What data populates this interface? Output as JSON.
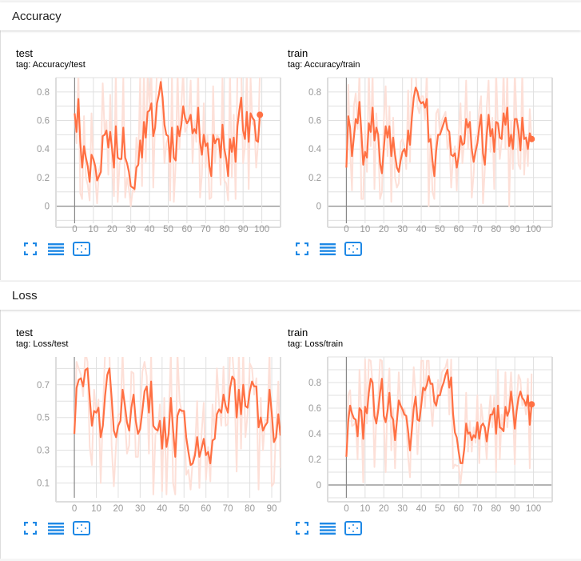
{
  "sections": [
    {
      "title": "Accuracy"
    },
    {
      "title": "Loss"
    }
  ],
  "colors": {
    "smoothed": "#ff7043",
    "raw": "#fde0d8",
    "icon": "#1e88e5",
    "grid": "#e0e0e0",
    "axis": "#999999"
  },
  "icons": [
    "fullscreen-icon",
    "list-icon",
    "fit-domain-icon"
  ],
  "chart_data": [
    {
      "type": "line",
      "title": "test",
      "tag": "tag: Accuracy/test",
      "xlim": [
        -10,
        110
      ],
      "ylim": [
        -0.12,
        0.9
      ],
      "xticks": [
        0,
        10,
        20,
        30,
        40,
        50,
        60,
        70,
        80,
        90,
        100
      ],
      "yticks": [
        0,
        0.2,
        0.4,
        0.6,
        0.8
      ],
      "ygrid_step": 0.1,
      "grid": true,
      "last_point_marker": true,
      "series": [
        {
          "role": "smoothed",
          "values": [
            0.65,
            0.52,
            0.75,
            0.45,
            0.27,
            0.42,
            0.34,
            0.28,
            0.17,
            0.36,
            0.33,
            0.28,
            0.18,
            0.21,
            0.24,
            0.49,
            0.5,
            0.53,
            0.41,
            0.52,
            0.4,
            0.27,
            0.56,
            0.34,
            0.33,
            0.33,
            0.55,
            0.34,
            0.3,
            0.24,
            0.14,
            0.13,
            0.12,
            0.27,
            0.29,
            0.46,
            0.34,
            0.59,
            0.48,
            0.66,
            0.67,
            0.72,
            0.49,
            0.55,
            0.72,
            0.78,
            0.87,
            0.76,
            0.57,
            0.5,
            0.49,
            0.31,
            0.55,
            0.34,
            0.32,
            0.56,
            0.49,
            0.57,
            0.7,
            0.62,
            0.58,
            0.6,
            0.64,
            0.51,
            0.54,
            0.51,
            0.69,
            0.45,
            0.36,
            0.5,
            0.42,
            0.44,
            0.28,
            0.21,
            0.5,
            0.44,
            0.47,
            0.47,
            0.34,
            0.57,
            0.4,
            0.33,
            0.21,
            0.47,
            0.38,
            0.48,
            0.31,
            0.56,
            0.67,
            0.76,
            0.53,
            0.47,
            0.66,
            0.45,
            0.65,
            0.62,
            0.6,
            0.46,
            0.45,
            0.64
          ]
        },
        {
          "role": "raw",
          "values": [
            0.65,
            0.44,
            0.95,
            0.09,
            0.05,
            0.63,
            0.2,
            0.15,
            0.04,
            0.65,
            0.3,
            0.2,
            0.02,
            0.25,
            0.3,
            0.86,
            0.52,
            0.6,
            0.22,
            0.78,
            0.28,
            0.07,
            0.95,
            0.03,
            0.3,
            0.34,
            0.9,
            0.06,
            0.2,
            0.12,
            0.0,
            0.11,
            0.1,
            0.48,
            0.3,
            0.9,
            0.14,
            0.95,
            0.31,
            0.92,
            0.7,
            0.95,
            0.13,
            0.62,
            0.95,
            0.9,
            0.98,
            0.62,
            0.3,
            0.44,
            0.48,
            0.04,
            0.92,
            0.03,
            0.3,
            0.95,
            0.4,
            0.7,
            0.95,
            0.52,
            0.55,
            0.63,
            0.88,
            0.3,
            0.6,
            0.45,
            0.95,
            0.06,
            0.22,
            0.72,
            0.27,
            0.5,
            0.05,
            0.06,
            0.84,
            0.3,
            0.5,
            0.48,
            0.15,
            0.92,
            0.18,
            0.16,
            0.04,
            0.95,
            0.2,
            0.64,
            0.05,
            0.95,
            0.9,
            0.95,
            0.3,
            0.42,
            0.95,
            0.12,
            0.9,
            0.58,
            0.56,
            0.27,
            0.44,
            0.95
          ]
        }
      ]
    },
    {
      "type": "line",
      "title": "train",
      "tag": "tag: Accuracy/train",
      "xlim": [
        -10,
        110
      ],
      "ylim": [
        -0.12,
        0.9
      ],
      "xticks": [
        0,
        10,
        20,
        30,
        40,
        50,
        60,
        70,
        80,
        90,
        100
      ],
      "yticks": [
        0,
        0.2,
        0.4,
        0.6,
        0.8
      ],
      "ygrid_step": 0.1,
      "grid": true,
      "last_point_marker": true,
      "series": [
        {
          "role": "smoothed",
          "values": [
            0.27,
            0.63,
            0.55,
            0.35,
            0.48,
            0.61,
            0.58,
            0.73,
            0.52,
            0.29,
            0.38,
            0.34,
            0.58,
            0.52,
            0.69,
            0.46,
            0.55,
            0.5,
            0.3,
            0.23,
            0.4,
            0.56,
            0.48,
            0.56,
            0.35,
            0.48,
            0.36,
            0.27,
            0.24,
            0.32,
            0.38,
            0.4,
            0.35,
            0.53,
            0.43,
            0.62,
            0.76,
            0.83,
            0.8,
            0.74,
            0.72,
            0.73,
            0.69,
            0.75,
            0.45,
            0.47,
            0.32,
            0.21,
            0.39,
            0.5,
            0.5,
            0.54,
            0.58,
            0.62,
            0.54,
            0.52,
            0.36,
            0.35,
            0.37,
            0.27,
            0.35,
            0.49,
            0.43,
            0.44,
            0.61,
            0.55,
            0.59,
            0.4,
            0.31,
            0.38,
            0.44,
            0.55,
            0.64,
            0.37,
            0.29,
            0.5,
            0.64,
            0.49,
            0.54,
            0.38,
            0.59,
            0.58,
            0.48,
            0.47,
            0.65,
            0.57,
            0.69,
            0.42,
            0.5,
            0.4,
            0.61,
            0.61,
            0.53,
            0.39,
            0.62,
            0.47,
            0.48,
            0.4,
            0.51,
            0.47
          ]
        },
        {
          "role": "raw",
          "values": [
            0.27,
            0.85,
            0.4,
            0.11,
            0.7,
            0.79,
            0.54,
            0.95,
            0.05,
            0.05,
            0.53,
            0.24,
            0.95,
            0.42,
            0.95,
            0.12,
            0.65,
            0.45,
            0.05,
            0.1,
            0.6,
            0.84,
            0.35,
            0.7,
            0.03,
            0.62,
            0.2,
            0.13,
            0.16,
            0.45,
            0.47,
            0.42,
            0.26,
            0.81,
            0.31,
            0.95,
            0.95,
            0.95,
            0.7,
            0.65,
            0.77,
            0.77,
            0.6,
            0.95,
            0.0,
            0.5,
            0.1,
            0.05,
            0.65,
            0.68,
            0.5,
            0.6,
            0.63,
            0.66,
            0.4,
            0.48,
            0.13,
            0.34,
            0.42,
            0.11,
            0.5,
            0.72,
            0.3,
            0.46,
            0.88,
            0.4,
            0.66,
            0.06,
            0.22,
            0.48,
            0.5,
            0.68,
            0.77,
            0.02,
            0.26,
            0.69,
            0.88,
            0.38,
            0.62,
            0.12,
            0.95,
            0.55,
            0.33,
            0.46,
            0.95,
            0.4,
            0.95,
            0.0,
            0.6,
            0.26,
            0.95,
            0.6,
            0.29,
            0.26,
            0.95,
            0.22,
            0.49,
            0.28,
            0.68,
            0.45
          ]
        }
      ]
    },
    {
      "type": "line",
      "title": "test",
      "tag": "tag: Loss/test",
      "xlim": [
        -8.4,
        94
      ],
      "ylim": [
        0.01,
        0.87
      ],
      "xticks": [
        0,
        10,
        20,
        30,
        40,
        50,
        60,
        70,
        80,
        90
      ],
      "yticks": [
        0.1,
        0.3,
        0.5,
        0.7
      ],
      "ygrid_step": 0.1,
      "grid": true,
      "last_point_marker": false,
      "series": [
        {
          "role": "smoothed",
          "values": [
            0.4,
            0.68,
            0.73,
            0.74,
            0.69,
            0.79,
            0.8,
            0.62,
            0.45,
            0.54,
            0.53,
            0.56,
            0.38,
            0.45,
            0.63,
            0.76,
            0.8,
            0.62,
            0.42,
            0.38,
            0.45,
            0.48,
            0.67,
            0.58,
            0.47,
            0.42,
            0.56,
            0.64,
            0.48,
            0.4,
            0.43,
            0.54,
            0.66,
            0.69,
            0.53,
            0.72,
            0.45,
            0.43,
            0.42,
            0.48,
            0.31,
            0.5,
            0.32,
            0.4,
            0.62,
            0.43,
            0.26,
            0.51,
            0.55,
            0.54,
            0.54,
            0.38,
            0.29,
            0.21,
            0.22,
            0.27,
            0.38,
            0.26,
            0.31,
            0.37,
            0.27,
            0.29,
            0.22,
            0.36,
            0.37,
            0.52,
            0.55,
            0.53,
            0.64,
            0.57,
            0.53,
            0.68,
            0.75,
            0.73,
            0.5,
            0.67,
            0.52,
            0.7,
            0.57,
            0.56,
            0.66,
            0.72,
            0.69,
            0.69,
            0.44,
            0.5,
            0.42,
            0.45,
            0.47,
            0.67,
            0.53,
            0.35,
            0.38,
            0.52,
            0.39
          ]
        },
        {
          "role": "raw",
          "values": [
            0.4,
            0.84,
            0.8,
            0.76,
            0.63,
            0.9,
            0.84,
            0.32,
            0.21,
            0.67,
            0.52,
            0.61,
            0.1,
            0.52,
            0.9,
            0.9,
            0.9,
            0.33,
            0.08,
            0.33,
            0.52,
            0.52,
            0.9,
            0.5,
            0.28,
            0.33,
            0.78,
            0.77,
            0.26,
            0.26,
            0.5,
            0.78,
            0.84,
            0.75,
            0.28,
            0.9,
            0.03,
            0.4,
            0.41,
            0.58,
            0.05,
            0.62,
            0.03,
            0.47,
            0.9,
            0.1,
            0.03,
            0.9,
            0.6,
            0.53,
            0.52,
            0.15,
            0.18,
            0.06,
            0.25,
            0.3,
            0.6,
            0.07,
            0.4,
            0.59,
            0.12,
            0.32,
            0.11,
            0.58,
            0.4,
            0.8,
            0.58,
            0.45,
            0.81,
            0.45,
            0.46,
            0.9,
            0.9,
            0.71,
            0.17,
            0.9,
            0.31,
            0.9,
            0.38,
            0.52,
            0.83,
            0.8,
            0.64,
            0.74,
            0.06,
            0.62,
            0.3,
            0.49,
            0.48,
            0.9,
            0.08,
            0.1,
            0.45,
            0.72,
            0.19
          ]
        }
      ]
    },
    {
      "type": "line",
      "title": "train",
      "tag": "tag: Loss/train",
      "xlim": [
        -10,
        110
      ],
      "ylim": [
        -0.1,
        1.0
      ],
      "xticks": [
        0,
        10,
        20,
        30,
        40,
        50,
        60,
        70,
        80,
        90,
        100
      ],
      "yticks": [
        0,
        0.2,
        0.4,
        0.6,
        0.8
      ],
      "ygrid_step": 0.1,
      "grid": true,
      "last_point_marker": true,
      "series": [
        {
          "role": "smoothed",
          "values": [
            0.22,
            0.5,
            0.62,
            0.56,
            0.52,
            0.51,
            0.38,
            0.6,
            0.58,
            0.36,
            0.61,
            0.56,
            0.72,
            0.83,
            0.8,
            0.54,
            0.48,
            0.58,
            0.72,
            0.83,
            0.54,
            0.49,
            0.58,
            0.72,
            0.54,
            0.51,
            0.35,
            0.5,
            0.66,
            0.62,
            0.59,
            0.55,
            0.54,
            0.42,
            0.27,
            0.43,
            0.6,
            0.69,
            0.51,
            0.5,
            0.62,
            0.76,
            0.74,
            0.78,
            0.85,
            0.79,
            0.79,
            0.65,
            0.62,
            0.7,
            0.7,
            0.76,
            0.8,
            0.86,
            0.9,
            0.76,
            0.84,
            0.56,
            0.41,
            0.37,
            0.26,
            0.17,
            0.17,
            0.28,
            0.48,
            0.4,
            0.41,
            0.35,
            0.39,
            0.37,
            0.49,
            0.36,
            0.46,
            0.48,
            0.45,
            0.34,
            0.45,
            0.55,
            0.55,
            0.6,
            0.4,
            0.62,
            0.45,
            0.44,
            0.42,
            0.61,
            0.54,
            0.58,
            0.73,
            0.6,
            0.44,
            0.58,
            0.68,
            0.73,
            0.68,
            0.66,
            0.62,
            0.7,
            0.47,
            0.63
          ]
        },
        {
          "role": "raw",
          "values": [
            0.22,
            0.7,
            0.74,
            0.46,
            0.47,
            0.5,
            0.2,
            0.9,
            0.55,
            0.02,
            0.98,
            0.48,
            0.98,
            0.97,
            0.79,
            0.14,
            0.52,
            0.66,
            0.98,
            0.97,
            0.5,
            0.1,
            0.7,
            0.91,
            0.27,
            0.6,
            0.13,
            0.5,
            0.88,
            0.6,
            0.52,
            0.6,
            0.5,
            0.22,
            0.06,
            0.6,
            0.92,
            0.7,
            0.24,
            0.54,
            0.97,
            0.97,
            0.6,
            0.97,
            0.97,
            0.65,
            0.46,
            0.7,
            0.6,
            0.82,
            0.7,
            0.88,
            0.9,
            0.92,
            0.98,
            0.55,
            0.98,
            0.13,
            0.16,
            0.15,
            0.15,
            0.01,
            0.15,
            0.3,
            0.72,
            0.26,
            0.5,
            0.26,
            0.45,
            0.33,
            0.7,
            0.17,
            0.63,
            0.5,
            0.4,
            0.2,
            0.52,
            0.7,
            0.45,
            0.7,
            0.1,
            0.9,
            0.2,
            0.55,
            0.42,
            0.88,
            0.45,
            0.65,
            0.88,
            0.6,
            0.16,
            0.65,
            0.86,
            0.82,
            0.62,
            0.66,
            0.55,
            0.83,
            0.13,
            0.87
          ]
        }
      ]
    }
  ]
}
